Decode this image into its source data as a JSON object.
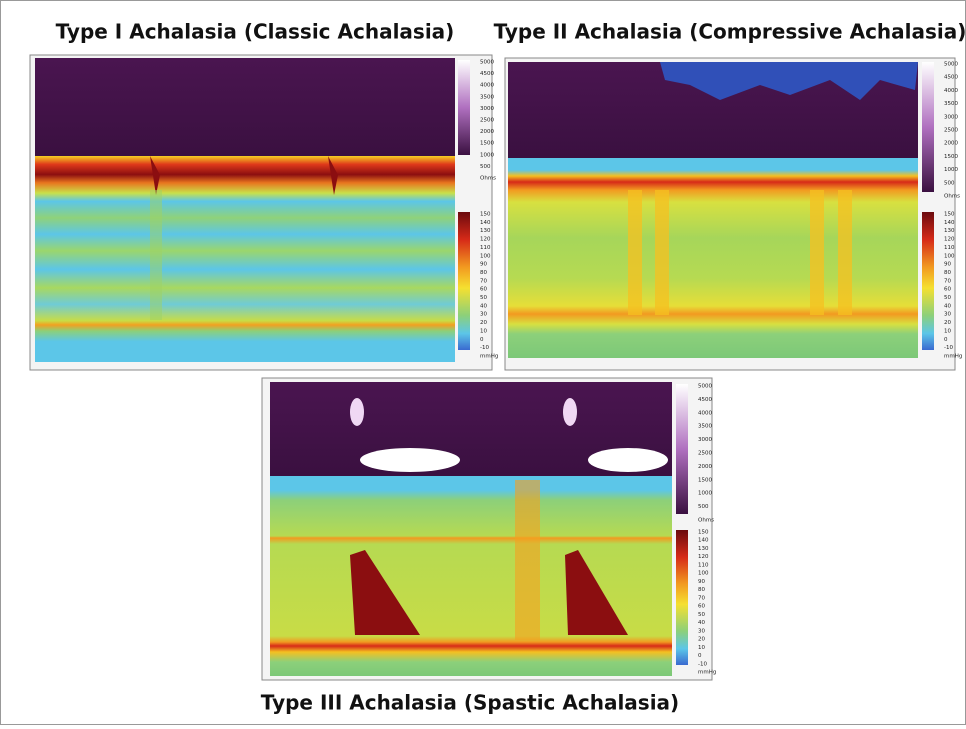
{
  "titles": [
    "Type I Achalasia (Classic Achalasia)",
    "Type II Achalasia (Compressive Achalasia)",
    "Type III Achalasia (Spastic Achalasia)"
  ],
  "impedance_scale": [
    "5000",
    "4500",
    "4000",
    "3500",
    "3000",
    "2500",
    "2000",
    "1500",
    "1000",
    "500",
    "Ohms"
  ],
  "pressure_scale": [
    "150",
    "140",
    "130",
    "120",
    "110",
    "100",
    "90",
    "80",
    "70",
    "60",
    "50",
    "40",
    "30",
    "20",
    "10",
    "0",
    "-10",
    "mmHg"
  ]
}
